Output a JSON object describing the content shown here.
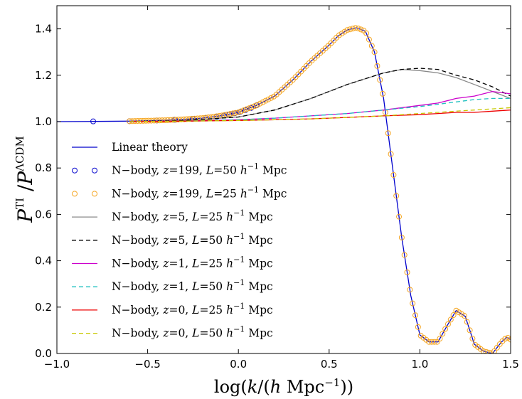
{
  "chart_data": {
    "type": "line",
    "xlabel": "log(k/(h Mpc⁻¹))",
    "ylabel": "P^TI / P^ΛCDM",
    "xlim": [
      -1.0,
      1.5
    ],
    "ylim": [
      0.0,
      1.5
    ],
    "x_ticks": [
      -1.0,
      -0.5,
      0.0,
      0.5,
      1.0,
      1.5
    ],
    "x_tick_labels": [
      "−1.0",
      "−0.5",
      "0.0",
      "0.5",
      "1.0",
      "1.5"
    ],
    "y_ticks": [
      0.0,
      0.2,
      0.4,
      0.6,
      0.8,
      1.0,
      1.2,
      1.4
    ],
    "y_tick_labels": [
      "0.0",
      "0.2",
      "0.4",
      "0.6",
      "0.8",
      "1.0",
      "1.2",
      "1.4"
    ],
    "grid": false,
    "legend_position": "center-left",
    "series": [
      {
        "name": "Linear theory",
        "style": "solid",
        "color": "#0000cc",
        "x": [
          -1.0,
          -0.8,
          -0.6,
          -0.5,
          -0.4,
          -0.3,
          -0.2,
          -0.1,
          0.0,
          0.1,
          0.2,
          0.3,
          0.4,
          0.5,
          0.55,
          0.6,
          0.65,
          0.7,
          0.75,
          0.8,
          0.85,
          0.9,
          0.95,
          1.0,
          1.05,
          1.1,
          1.15,
          1.2,
          1.25,
          1.3,
          1.35,
          1.4,
          1.45,
          1.48,
          1.5
        ],
        "y": [
          1.0,
          1.001,
          1.002,
          1.004,
          1.006,
          1.01,
          1.015,
          1.025,
          1.04,
          1.07,
          1.11,
          1.18,
          1.26,
          1.33,
          1.37,
          1.395,
          1.405,
          1.39,
          1.3,
          1.1,
          0.8,
          0.5,
          0.25,
          0.08,
          0.05,
          0.05,
          0.12,
          0.185,
          0.16,
          0.04,
          0.01,
          0.0,
          0.05,
          0.07,
          0.06
        ]
      },
      {
        "name": "N−body, z=199, L=50 h⁻¹ Mpc",
        "style": "circle",
        "color": "#0000cc",
        "x": [
          -0.8,
          -0.6,
          -0.45,
          -0.35,
          -0.25,
          -0.18,
          -0.12,
          -0.08,
          -0.05,
          -0.02,
          0.01,
          0.04,
          0.07,
          0.1
        ],
        "y": [
          1.001,
          1.002,
          1.005,
          1.008,
          1.012,
          1.016,
          1.021,
          1.026,
          1.031,
          1.036,
          1.042,
          1.05,
          1.059,
          1.07
        ]
      },
      {
        "name": "N−body, z=199, L=25 h⁻¹ Mpc",
        "style": "circle",
        "color": "#f5a623",
        "x_range": [
          -0.6,
          1.5
        ],
        "note": "follows linear theory densely"
      },
      {
        "name": "N−body, z=5, L=25 h⁻¹ Mpc",
        "style": "solid",
        "color": "#888888",
        "x": [
          -0.6,
          -0.3,
          0.0,
          0.2,
          0.4,
          0.6,
          0.8,
          0.9,
          1.0,
          1.1,
          1.2,
          1.3,
          1.4,
          1.5
        ],
        "y": [
          1.0,
          1.005,
          1.02,
          1.05,
          1.1,
          1.16,
          1.21,
          1.225,
          1.22,
          1.21,
          1.19,
          1.16,
          1.13,
          1.1
        ]
      },
      {
        "name": "N−body, z=5, L=50 h⁻¹ Mpc",
        "style": "dashed",
        "color": "#000000",
        "x": [
          -0.6,
          -0.3,
          0.0,
          0.2,
          0.4,
          0.6,
          0.8,
          0.9,
          1.0,
          1.1,
          1.2,
          1.3,
          1.4,
          1.5
        ],
        "y": [
          1.0,
          1.005,
          1.02,
          1.05,
          1.1,
          1.16,
          1.21,
          1.225,
          1.23,
          1.225,
          1.2,
          1.18,
          1.15,
          1.11
        ]
      },
      {
        "name": "N−body, z=1, L=25 h⁻¹ Mpc",
        "style": "solid",
        "color": "#cc00cc",
        "x": [
          -0.6,
          -0.3,
          0.0,
          0.2,
          0.4,
          0.6,
          0.8,
          1.0,
          1.1,
          1.2,
          1.3,
          1.4,
          1.5
        ],
        "y": [
          1.0,
          1.002,
          1.008,
          1.015,
          1.025,
          1.035,
          1.05,
          1.07,
          1.08,
          1.1,
          1.11,
          1.13,
          1.12
        ]
      },
      {
        "name": "N−body, z=1, L=50 h⁻¹ Mpc",
        "style": "dashed",
        "color": "#20c0c0",
        "x": [
          -0.6,
          -0.3,
          0.0,
          0.2,
          0.4,
          0.6,
          0.8,
          1.0,
          1.1,
          1.2,
          1.3,
          1.4,
          1.5
        ],
        "y": [
          1.0,
          1.002,
          1.008,
          1.015,
          1.025,
          1.035,
          1.05,
          1.065,
          1.075,
          1.085,
          1.095,
          1.1,
          1.1
        ]
      },
      {
        "name": "N−body, z=0, L=25 h⁻¹ Mpc",
        "style": "solid",
        "color": "#ee0000",
        "x": [
          -0.6,
          -0.3,
          0.0,
          0.2,
          0.4,
          0.6,
          0.8,
          1.0,
          1.1,
          1.2,
          1.3,
          1.4,
          1.5
        ],
        "y": [
          1.0,
          1.002,
          1.005,
          1.008,
          1.012,
          1.018,
          1.025,
          1.03,
          1.035,
          1.04,
          1.04,
          1.045,
          1.05
        ]
      },
      {
        "name": "N−body, z=0, L=50 h⁻¹ Mpc",
        "style": "dashed",
        "color": "#c8c800",
        "x": [
          -0.6,
          -0.3,
          0.0,
          0.2,
          0.4,
          0.6,
          0.8,
          1.0,
          1.1,
          1.2,
          1.3,
          1.4,
          1.5
        ],
        "y": [
          1.0,
          1.002,
          1.005,
          1.008,
          1.012,
          1.018,
          1.025,
          1.035,
          1.04,
          1.045,
          1.05,
          1.055,
          1.06
        ]
      }
    ]
  }
}
